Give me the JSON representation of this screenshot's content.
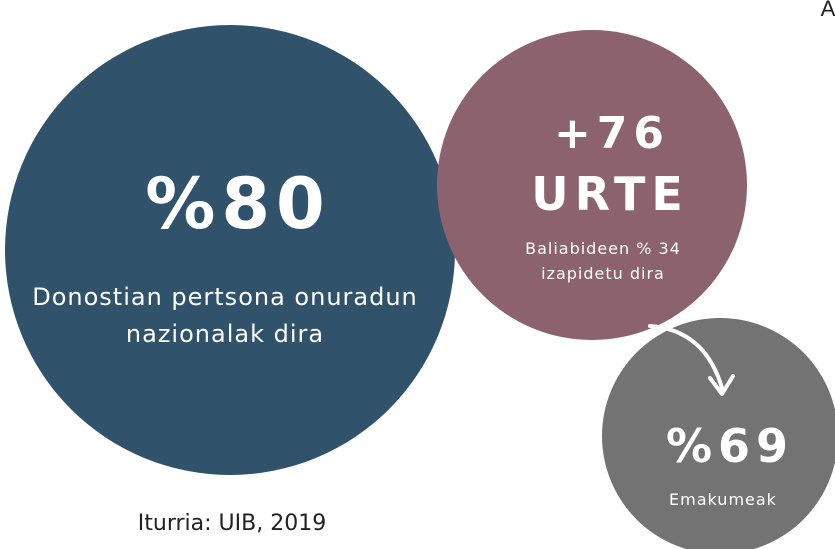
{
  "corner_text": "A",
  "circles": [
    {
      "headline": "%80",
      "lines": [
        "Donostian pertsona onuradun",
        "nazionalak dira"
      ]
    },
    {
      "headline": "+76",
      "headline2": "URTE",
      "lines": [
        "Baliabideen % 34",
        "izapidetu dira"
      ]
    },
    {
      "headline": "%69",
      "lines": [
        "Emakumeak"
      ]
    }
  ],
  "source": "Iturria: UIB, 2019"
}
